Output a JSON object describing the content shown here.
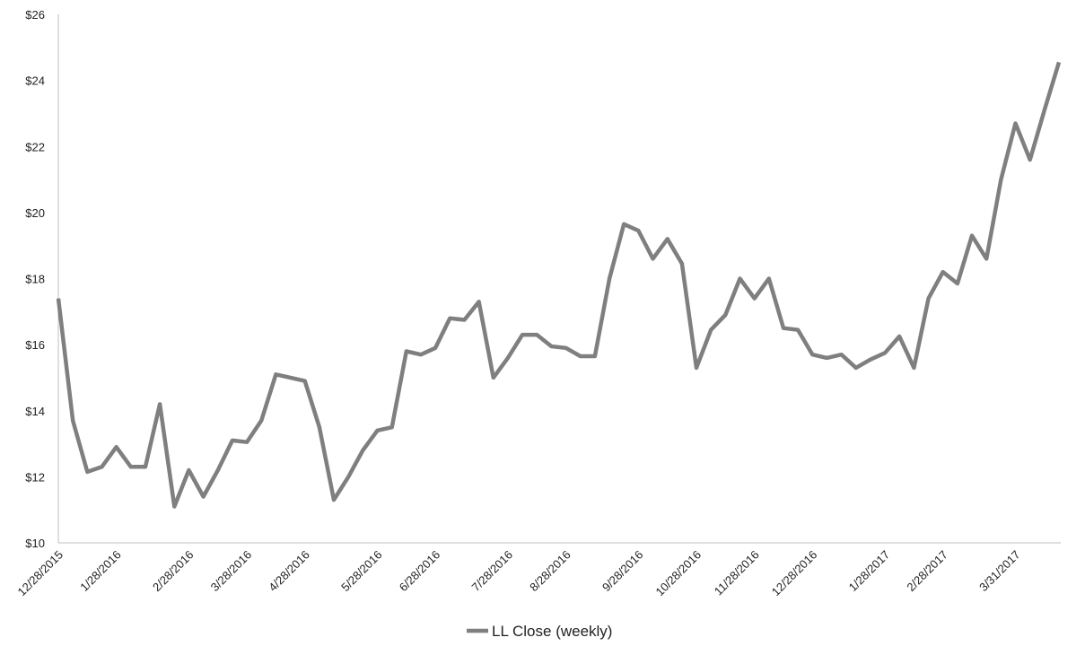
{
  "chart_data": {
    "type": "line",
    "categories": [
      "12/28/2015",
      null,
      null,
      null,
      "1/28/2016",
      null,
      null,
      null,
      null,
      "2/28/2016",
      null,
      null,
      null,
      "3/28/2016",
      null,
      null,
      null,
      "4/28/2016",
      null,
      null,
      null,
      null,
      "5/28/2016",
      null,
      null,
      null,
      "6/28/2016",
      null,
      null,
      null,
      null,
      "7/28/2016",
      null,
      null,
      null,
      "8/28/2016",
      null,
      null,
      null,
      null,
      "9/28/2016",
      null,
      null,
      null,
      "10/28/2016",
      null,
      null,
      null,
      "11/28/2016",
      null,
      null,
      null,
      "12/28/2016",
      null,
      null,
      null,
      null,
      "1/28/2017",
      null,
      null,
      null,
      "2/28/2017",
      null,
      null,
      null,
      null,
      "3/31/2017",
      null,
      null,
      null
    ],
    "series": [
      {
        "name": "LL Close (weekly)",
        "color": "#7f7f7f",
        "values": [
          17.4,
          13.7,
          12.15,
          12.3,
          12.9,
          12.3,
          12.3,
          14.2,
          11.1,
          12.2,
          11.4,
          12.2,
          13.1,
          13.05,
          13.7,
          15.1,
          15.0,
          14.9,
          13.5,
          11.3,
          12.0,
          12.8,
          13.4,
          13.5,
          15.8,
          15.7,
          15.9,
          16.8,
          16.75,
          17.3,
          15.0,
          15.6,
          16.3,
          16.3,
          15.95,
          15.9,
          15.65,
          15.65,
          18.0,
          19.65,
          19.45,
          18.6,
          19.2,
          18.45,
          15.3,
          16.45,
          16.9,
          18.0,
          17.4,
          18.0,
          16.5,
          16.45,
          15.7,
          15.6,
          15.7,
          15.3,
          15.55,
          15.75,
          16.25,
          15.3,
          17.4,
          18.2,
          17.85,
          19.3,
          18.6,
          21.0,
          22.7,
          21.6,
          23.1,
          24.55
        ]
      }
    ],
    "ylim": [
      10,
      26
    ],
    "yticks": [
      {
        "value": 10,
        "label": "$10"
      },
      {
        "value": 12,
        "label": "$12"
      },
      {
        "value": 14,
        "label": "$14"
      },
      {
        "value": 16,
        "label": "$16"
      },
      {
        "value": 18,
        "label": "$18"
      },
      {
        "value": 20,
        "label": "$20"
      },
      {
        "value": 22,
        "label": "$22"
      },
      {
        "value": 24,
        "label": "$24"
      },
      {
        "value": 26,
        "label": "$26"
      }
    ],
    "grid": false,
    "legend": "bottom"
  }
}
